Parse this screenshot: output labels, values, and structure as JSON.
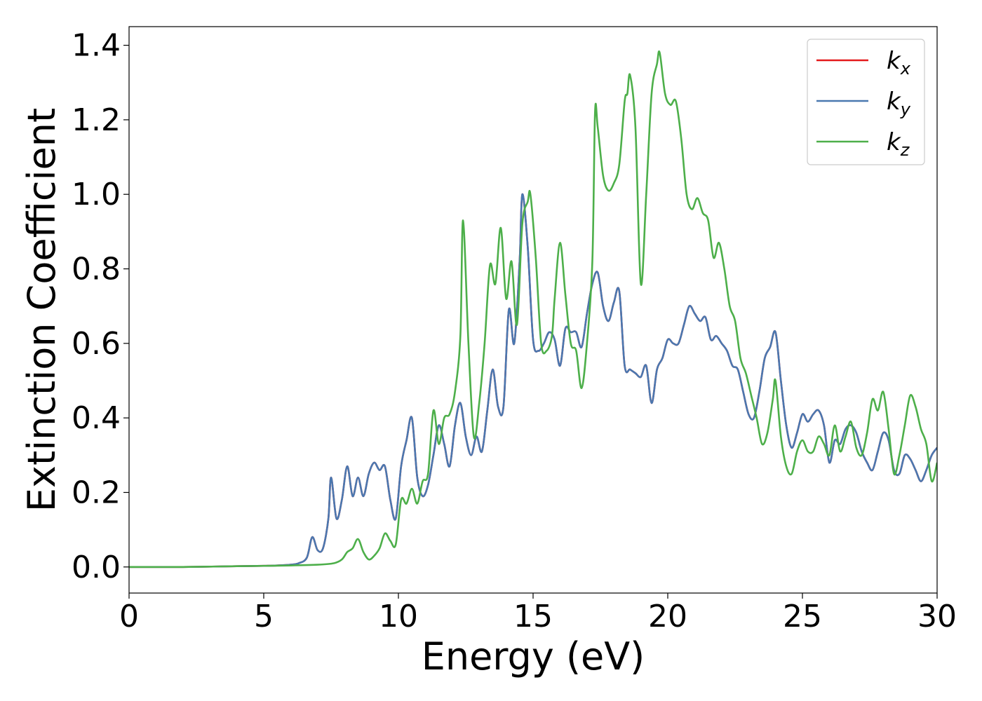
{
  "chart_data": {
    "type": "line",
    "xlabel": "Energy (eV)",
    "ylabel": "Extinction Coefficient",
    "xlim": [
      0,
      30
    ],
    "ylim": [
      -0.07,
      1.45
    ],
    "xticks": [
      0,
      5,
      10,
      15,
      20,
      25,
      30
    ],
    "xtick_labels": [
      "0",
      "5",
      "10",
      "15",
      "20",
      "25",
      "30"
    ],
    "yticks": [
      0.0,
      0.2,
      0.4,
      0.6,
      0.8,
      1.0,
      1.2,
      1.4
    ],
    "ytick_labels": [
      "0.0",
      "0.2",
      "0.4",
      "0.6",
      "0.8",
      "1.0",
      "1.2",
      "1.4"
    ],
    "grid": false,
    "legend_position": "top-right",
    "series": [
      {
        "name": "kx",
        "label_base": "k",
        "label_sub": "x",
        "color": "#e41a1c",
        "x": [
          0,
          2,
          4,
          5,
          5.5,
          6,
          6.3,
          6.6,
          6.8,
          7.0,
          7.2,
          7.4,
          7.5,
          7.7,
          7.9,
          8.1,
          8.3,
          8.5,
          8.7,
          8.9,
          9.1,
          9.3,
          9.5,
          9.7,
          9.9,
          10.1,
          10.3,
          10.5,
          10.7,
          10.9,
          11.1,
          11.3,
          11.5,
          11.7,
          11.9,
          12.1,
          12.3,
          12.5,
          12.7,
          12.9,
          13.1,
          13.3,
          13.5,
          13.7,
          13.9,
          14.1,
          14.3,
          14.5,
          14.6,
          14.8,
          15.0,
          15.2,
          15.4,
          15.6,
          15.8,
          16.0,
          16.2,
          16.4,
          16.6,
          16.8,
          17.0,
          17.2,
          17.4,
          17.6,
          17.8,
          18.0,
          18.2,
          18.4,
          18.6,
          18.8,
          19.0,
          19.2,
          19.4,
          19.6,
          19.8,
          20.0,
          20.2,
          20.4,
          20.6,
          20.8,
          21.0,
          21.2,
          21.4,
          21.6,
          21.8,
          22.0,
          22.2,
          22.4,
          22.6,
          22.8,
          23.0,
          23.2,
          23.4,
          23.6,
          23.8,
          24.0,
          24.2,
          24.4,
          24.6,
          24.8,
          25.0,
          25.2,
          25.4,
          25.6,
          25.8,
          26.0,
          26.2,
          26.4,
          26.6,
          26.8,
          27.0,
          27.2,
          27.4,
          27.6,
          27.8,
          28.0,
          28.2,
          28.4,
          28.6,
          28.8,
          29.0,
          29.2,
          29.4,
          29.6,
          29.8,
          30.0
        ],
        "y": [
          0.0,
          0.0,
          0.002,
          0.003,
          0.004,
          0.006,
          0.01,
          0.025,
          0.08,
          0.045,
          0.05,
          0.13,
          0.24,
          0.13,
          0.18,
          0.27,
          0.19,
          0.24,
          0.19,
          0.25,
          0.28,
          0.26,
          0.27,
          0.18,
          0.13,
          0.27,
          0.34,
          0.4,
          0.24,
          0.19,
          0.22,
          0.3,
          0.38,
          0.33,
          0.27,
          0.38,
          0.44,
          0.35,
          0.3,
          0.35,
          0.31,
          0.42,
          0.53,
          0.43,
          0.43,
          0.69,
          0.6,
          0.82,
          1.0,
          0.86,
          0.61,
          0.58,
          0.6,
          0.63,
          0.61,
          0.54,
          0.64,
          0.63,
          0.63,
          0.59,
          0.68,
          0.76,
          0.79,
          0.7,
          0.66,
          0.71,
          0.74,
          0.54,
          0.53,
          0.52,
          0.51,
          0.54,
          0.44,
          0.53,
          0.56,
          0.61,
          0.6,
          0.6,
          0.65,
          0.7,
          0.68,
          0.66,
          0.67,
          0.61,
          0.62,
          0.6,
          0.58,
          0.54,
          0.53,
          0.47,
          0.41,
          0.4,
          0.47,
          0.56,
          0.59,
          0.63,
          0.5,
          0.38,
          0.32,
          0.36,
          0.41,
          0.39,
          0.41,
          0.42,
          0.38,
          0.28,
          0.34,
          0.33,
          0.37,
          0.38,
          0.36,
          0.31,
          0.28,
          0.26,
          0.31,
          0.36,
          0.34,
          0.26,
          0.25,
          0.3,
          0.29,
          0.26,
          0.23,
          0.26,
          0.3,
          0.32
        ]
      },
      {
        "name": "ky",
        "label_base": "k",
        "label_sub": "y",
        "color": "#4a78b0",
        "x": [
          0,
          2,
          4,
          5,
          5.5,
          6,
          6.3,
          6.6,
          6.8,
          7.0,
          7.2,
          7.4,
          7.5,
          7.7,
          7.9,
          8.1,
          8.3,
          8.5,
          8.7,
          8.9,
          9.1,
          9.3,
          9.5,
          9.7,
          9.9,
          10.1,
          10.3,
          10.5,
          10.7,
          10.9,
          11.1,
          11.3,
          11.5,
          11.7,
          11.9,
          12.1,
          12.3,
          12.5,
          12.7,
          12.9,
          13.1,
          13.3,
          13.5,
          13.7,
          13.9,
          14.1,
          14.3,
          14.5,
          14.6,
          14.8,
          15.0,
          15.2,
          15.4,
          15.6,
          15.8,
          16.0,
          16.2,
          16.4,
          16.6,
          16.8,
          17.0,
          17.2,
          17.4,
          17.6,
          17.8,
          18.0,
          18.2,
          18.4,
          18.6,
          18.8,
          19.0,
          19.2,
          19.4,
          19.6,
          19.8,
          20.0,
          20.2,
          20.4,
          20.6,
          20.8,
          21.0,
          21.2,
          21.4,
          21.6,
          21.8,
          22.0,
          22.2,
          22.4,
          22.6,
          22.8,
          23.0,
          23.2,
          23.4,
          23.6,
          23.8,
          24.0,
          24.2,
          24.4,
          24.6,
          24.8,
          25.0,
          25.2,
          25.4,
          25.6,
          25.8,
          26.0,
          26.2,
          26.4,
          26.6,
          26.8,
          27.0,
          27.2,
          27.4,
          27.6,
          27.8,
          28.0,
          28.2,
          28.4,
          28.6,
          28.8,
          29.0,
          29.2,
          29.4,
          29.6,
          29.8,
          30.0
        ],
        "y": [
          0.0,
          0.0,
          0.002,
          0.003,
          0.004,
          0.006,
          0.01,
          0.025,
          0.08,
          0.045,
          0.05,
          0.13,
          0.24,
          0.13,
          0.18,
          0.27,
          0.19,
          0.24,
          0.19,
          0.25,
          0.28,
          0.26,
          0.27,
          0.18,
          0.13,
          0.27,
          0.34,
          0.4,
          0.24,
          0.19,
          0.22,
          0.3,
          0.38,
          0.33,
          0.27,
          0.38,
          0.44,
          0.35,
          0.3,
          0.35,
          0.31,
          0.42,
          0.53,
          0.43,
          0.43,
          0.69,
          0.6,
          0.82,
          1.0,
          0.86,
          0.61,
          0.58,
          0.6,
          0.63,
          0.61,
          0.54,
          0.64,
          0.63,
          0.63,
          0.59,
          0.68,
          0.76,
          0.79,
          0.7,
          0.66,
          0.71,
          0.74,
          0.54,
          0.53,
          0.52,
          0.51,
          0.54,
          0.44,
          0.53,
          0.56,
          0.61,
          0.6,
          0.6,
          0.65,
          0.7,
          0.68,
          0.66,
          0.67,
          0.61,
          0.62,
          0.6,
          0.58,
          0.54,
          0.53,
          0.47,
          0.41,
          0.4,
          0.47,
          0.56,
          0.59,
          0.63,
          0.5,
          0.38,
          0.32,
          0.36,
          0.41,
          0.39,
          0.41,
          0.42,
          0.38,
          0.28,
          0.34,
          0.33,
          0.37,
          0.38,
          0.36,
          0.31,
          0.28,
          0.26,
          0.31,
          0.36,
          0.34,
          0.26,
          0.25,
          0.3,
          0.29,
          0.26,
          0.23,
          0.26,
          0.3,
          0.32
        ]
      },
      {
        "name": "kz",
        "label_base": "k",
        "label_sub": "z",
        "color": "#4daf4a",
        "x": [
          0,
          2,
          4,
          6,
          7,
          7.6,
          7.9,
          8.1,
          8.3,
          8.5,
          8.7,
          8.9,
          9.1,
          9.3,
          9.5,
          9.7,
          9.9,
          10.1,
          10.3,
          10.5,
          10.7,
          10.9,
          11.1,
          11.3,
          11.5,
          11.7,
          11.9,
          12.1,
          12.3,
          12.4,
          12.6,
          12.8,
          13.0,
          13.2,
          13.4,
          13.6,
          13.8,
          14.0,
          14.2,
          14.4,
          14.6,
          14.8,
          14.9,
          15.1,
          15.3,
          15.5,
          15.7,
          15.8,
          16.0,
          16.2,
          16.4,
          16.6,
          16.8,
          17.0,
          17.2,
          17.3,
          17.4,
          17.6,
          17.8,
          18.0,
          18.2,
          18.4,
          18.5,
          18.6,
          18.8,
          19.0,
          19.2,
          19.4,
          19.6,
          19.7,
          19.9,
          20.1,
          20.3,
          20.5,
          20.7,
          20.9,
          21.1,
          21.3,
          21.5,
          21.7,
          21.9,
          22.1,
          22.3,
          22.5,
          22.7,
          22.9,
          23.1,
          23.3,
          23.5,
          23.7,
          23.9,
          24.0,
          24.2,
          24.4,
          24.6,
          24.8,
          25.0,
          25.2,
          25.4,
          25.6,
          25.8,
          26.0,
          26.2,
          26.4,
          26.6,
          26.8,
          27.0,
          27.2,
          27.4,
          27.6,
          27.8,
          28.0,
          28.2,
          28.4,
          28.6,
          28.8,
          29.0,
          29.2,
          29.4,
          29.6,
          29.8,
          30.0
        ],
        "y": [
          0.0,
          0.0,
          0.002,
          0.004,
          0.006,
          0.01,
          0.02,
          0.04,
          0.05,
          0.075,
          0.04,
          0.02,
          0.03,
          0.05,
          0.09,
          0.07,
          0.06,
          0.18,
          0.17,
          0.21,
          0.17,
          0.23,
          0.25,
          0.42,
          0.33,
          0.4,
          0.41,
          0.47,
          0.62,
          0.93,
          0.6,
          0.35,
          0.44,
          0.6,
          0.81,
          0.76,
          0.91,
          0.72,
          0.82,
          0.65,
          0.92,
          0.98,
          1.0,
          0.83,
          0.6,
          0.58,
          0.62,
          0.72,
          0.87,
          0.73,
          0.6,
          0.58,
          0.48,
          0.6,
          0.82,
          1.22,
          1.18,
          1.05,
          1.01,
          1.03,
          1.08,
          1.25,
          1.27,
          1.32,
          1.18,
          0.76,
          1.0,
          1.27,
          1.35,
          1.38,
          1.27,
          1.24,
          1.25,
          1.15,
          1.0,
          0.96,
          0.99,
          0.95,
          0.93,
          0.83,
          0.87,
          0.8,
          0.7,
          0.66,
          0.56,
          0.52,
          0.46,
          0.4,
          0.33,
          0.36,
          0.45,
          0.5,
          0.35,
          0.27,
          0.25,
          0.31,
          0.34,
          0.31,
          0.31,
          0.35,
          0.33,
          0.3,
          0.38,
          0.31,
          0.35,
          0.39,
          0.32,
          0.3,
          0.36,
          0.45,
          0.42,
          0.47,
          0.37,
          0.25,
          0.3,
          0.38,
          0.46,
          0.43,
          0.37,
          0.33,
          0.23,
          0.28
        ]
      }
    ]
  }
}
